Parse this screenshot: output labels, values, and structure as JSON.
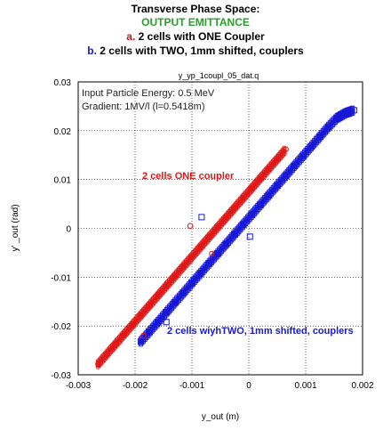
{
  "header": {
    "title": "Transverse Phase Space:",
    "subtitle": "OUTPUT EMITTANCE",
    "line_a_prefix": "a.",
    "line_a_text": " 2 cells  with ONE Coupler",
    "line_b_prefix": "b.",
    "line_b_text": " 2 cells with TWO, 1mm shifted, couplers",
    "colors": {
      "subtitle": "#2a9d2a",
      "a": "#d01010",
      "b": "#1515d0"
    }
  },
  "chart_data": {
    "type": "scatter",
    "title": "y_yp_1coupl_05_dat.q",
    "xlabel": "y_out (m)",
    "ylabel": "y' _out (rad)",
    "xlim": [
      -0.003,
      0.002
    ],
    "ylim": [
      -0.03,
      0.03
    ],
    "xticks": [
      "-0.003",
      "-0.002",
      "-0.001",
      "0",
      "0.001",
      "0.002"
    ],
    "yticks": [
      "0.03",
      "0.02",
      "0.01",
      "0",
      "-0.01",
      "-0.02",
      "-0.03"
    ],
    "grid": true,
    "annotations": [
      "Input Particle Energy: 0.5 MeV",
      "Gradient: 1MV/l (l=0.5418m)"
    ],
    "series": [
      {
        "name": "2 cells ONE coupler",
        "color": "#e01818",
        "marker": "circle",
        "x": [
          -0.00265,
          -0.0025,
          -0.00235,
          -0.0022,
          -0.00205,
          -0.0019,
          -0.00175,
          -0.0016,
          -0.00145,
          -0.0013,
          -0.00115,
          -0.001,
          -0.00085,
          -0.0007,
          -0.00055,
          -0.0004,
          -0.00025,
          -0.0001,
          5e-05,
          0.0002,
          0.00035,
          0.0005,
          0.00065,
          -0.00185,
          -0.00103,
          -0.00065,
          -0.00158
        ],
        "y": [
          -0.0278,
          -0.0258,
          -0.0238,
          -0.0218,
          -0.0198,
          -0.0178,
          -0.0158,
          -0.0138,
          -0.0118,
          -0.0098,
          -0.0078,
          -0.0058,
          -0.0038,
          -0.0018,
          0.0002,
          0.0022,
          0.0042,
          0.0062,
          0.0082,
          0.0102,
          0.0122,
          0.0142,
          0.0162,
          -0.022,
          0.0005,
          -0.0052,
          -0.0133
        ]
      },
      {
        "name": "2 cells wiyhTWO, 1mm shifted, couplers",
        "color": "#1818d8",
        "marker": "square",
        "x": [
          -0.0019,
          -0.00175,
          -0.0016,
          -0.00145,
          -0.0013,
          -0.00115,
          -0.001,
          -0.00085,
          -0.0007,
          -0.00055,
          -0.0004,
          -0.00025,
          -0.0001,
          5e-05,
          0.0002,
          0.00035,
          0.0005,
          0.00065,
          0.0008,
          0.00095,
          0.0011,
          0.00125,
          0.0014,
          0.00155,
          0.0017,
          0.00185,
          -0.00083,
          2e-05,
          -0.00145
        ],
        "y": [
          -0.0232,
          -0.0212,
          -0.0192,
          -0.0172,
          -0.0152,
          -0.0132,
          -0.0112,
          -0.0092,
          -0.0072,
          -0.0052,
          -0.0032,
          -0.0012,
          0.0008,
          0.0028,
          0.0048,
          0.0068,
          0.0088,
          0.0108,
          0.0128,
          0.0148,
          0.0168,
          0.0188,
          0.0208,
          0.0226,
          0.0236,
          0.0242,
          0.0023,
          -0.0017,
          -0.0192
        ]
      }
    ]
  }
}
